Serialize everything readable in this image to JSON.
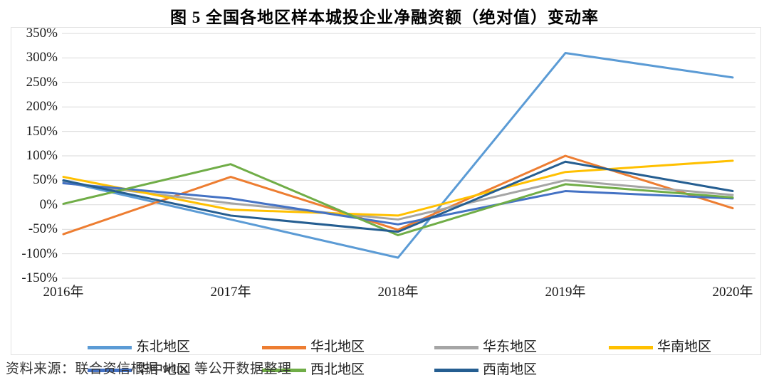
{
  "title": "图 5  全国各地区样本城投企业净融资额（绝对值）变动率",
  "source_note": "资料来源：联合资信根据 wind 等公开数据整理",
  "chart_data": {
    "type": "line",
    "title": "图 5  全国各地区样本城投企业净融资额（绝对值）变动率",
    "categories": [
      "2016年",
      "2017年",
      "2018年",
      "2019年",
      "2020年"
    ],
    "series": [
      {
        "name": "东北地区",
        "color": "#5B9BD5",
        "values": [
          48,
          -30,
          -108,
          310,
          260
        ]
      },
      {
        "name": "华北地区",
        "color": "#ED7D31",
        "values": [
          -60,
          57,
          -51,
          100,
          -7
        ]
      },
      {
        "name": "华东地区",
        "color": "#A5A5A5",
        "values": [
          45,
          3,
          -30,
          50,
          20
        ]
      },
      {
        "name": "华南地区",
        "color": "#FFC000",
        "values": [
          57,
          -10,
          -22,
          67,
          90
        ]
      },
      {
        "name": "华中地区",
        "color": "#4472C4",
        "values": [
          44,
          13,
          -40,
          28,
          13
        ]
      },
      {
        "name": "西北地区",
        "color": "#70AD47",
        "values": [
          2,
          83,
          -62,
          42,
          15
        ]
      },
      {
        "name": "西南地区",
        "color": "#255E91",
        "values": [
          50,
          -22,
          -55,
          88,
          28
        ]
      }
    ],
    "y_ticks": [
      "350%",
      "300%",
      "250%",
      "200%",
      "150%",
      "100%",
      "50%",
      "0%",
      "-50%",
      "-100%",
      "-150%"
    ],
    "ylim": [
      -150,
      350
    ],
    "grid": true,
    "gridline_color": "#D9D9D9",
    "legend_position": "bottom",
    "xlabel": "",
    "ylabel": ""
  }
}
